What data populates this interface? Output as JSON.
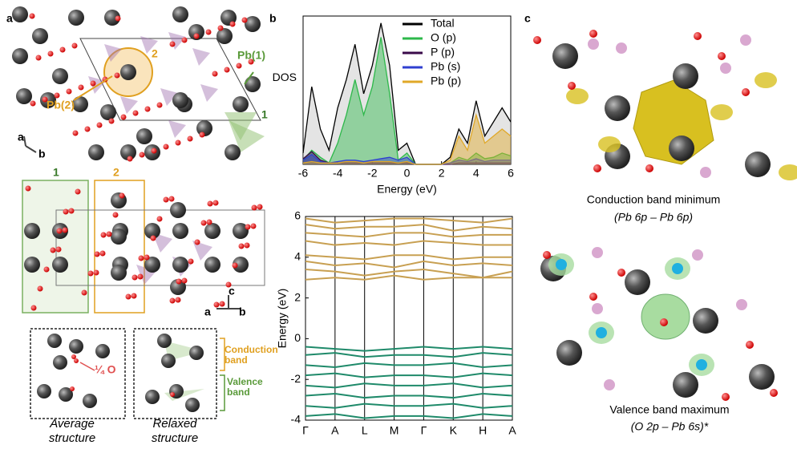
{
  "panel_labels": [
    "a",
    "b",
    "c"
  ],
  "panel_a": {
    "site_labels": [
      "Pb(2)",
      "Pb(1)"
    ],
    "site_numbers_top": [
      "2",
      "1"
    ],
    "site_numbers_side": [
      "1",
      "2"
    ],
    "axes_top": [
      "a",
      "b"
    ],
    "axes_side": [
      "c",
      "a",
      "b"
    ],
    "quarter_o": "¼ O",
    "band_labels": [
      "Conduction band",
      "Valence band"
    ],
    "structure_captions": [
      "Average structure",
      "Relaxed structure"
    ]
  },
  "panel_c": {
    "cbm_title": "Conduction band minimum",
    "cbm_orbitals": "(Pb 6p – Pb 6p)",
    "vbm_title": "Valence band maximum",
    "vbm_orbitals": "(O 2p – Pb 6s)*"
  },
  "chart_data": [
    {
      "type": "area",
      "xlabel": "Energy (eV)",
      "ylabel": "DOS",
      "legend": "upper right",
      "x": [
        -6,
        -5.5,
        -5,
        -4.5,
        -4,
        -3.5,
        -3,
        -2.5,
        -2,
        -1.5,
        -1,
        -0.5,
        0,
        0.5,
        1,
        1.5,
        2,
        2.5,
        3,
        3.5,
        4,
        4.5,
        5,
        5.5,
        6
      ],
      "xlim": [
        -6,
        6
      ],
      "xticks": [
        -6,
        -4,
        -2,
        0,
        2,
        4,
        6
      ],
      "ylim": [
        0,
        10.5
      ],
      "series": [
        {
          "name": "Total",
          "color": "#000000",
          "values": [
            0.8,
            5.5,
            2.5,
            1,
            4,
            6,
            8.5,
            5,
            7,
            10,
            7,
            1,
            1.5,
            0,
            0,
            0,
            0,
            0.5,
            2.5,
            1.5,
            4.5,
            2,
            3,
            4,
            3
          ]
        },
        {
          "name": "O (p)",
          "color": "#2db84a",
          "values": [
            0.3,
            1,
            0.5,
            0.1,
            1.5,
            3.5,
            6,
            3.5,
            5.5,
            9,
            5,
            0.3,
            0.8,
            0,
            0,
            0,
            0,
            0.1,
            0.5,
            0.3,
            0.8,
            0.4,
            0.5,
            0.8,
            0.6
          ]
        },
        {
          "name": "P (p)",
          "color": "#3a0a4a",
          "values": [
            0.4,
            0.9,
            0.3,
            0.1,
            0.1,
            0.1,
            0.1,
            0.1,
            0.1,
            0.1,
            0.1,
            0.1,
            0.1,
            0,
            0,
            0,
            0,
            0,
            0.1,
            0.1,
            0.1,
            0.1,
            0.1,
            0.1,
            0.1
          ]
        },
        {
          "name": "Pb (s)",
          "color": "#2f3fd0",
          "values": [
            0.3,
            0.7,
            0.2,
            0.1,
            0.2,
            0.3,
            0.3,
            0.2,
            0.3,
            0.4,
            0.5,
            0.3,
            0.5,
            0,
            0,
            0,
            0,
            0.1,
            0.3,
            0.2,
            0.4,
            0.2,
            0.3,
            0.3,
            0.3
          ]
        },
        {
          "name": "Pb (p)",
          "color": "#e0a828",
          "values": [
            0.1,
            0.2,
            0.1,
            0.1,
            0.1,
            0.2,
            0.2,
            0.1,
            0.2,
            0.2,
            0.2,
            0.1,
            0.2,
            0,
            0,
            0,
            0,
            0.3,
            2,
            1,
            3.5,
            1.5,
            2,
            2.5,
            2
          ]
        }
      ]
    },
    {
      "type": "line",
      "ylabel": "Energy (eV)",
      "categories": [
        "Γ",
        "A",
        "L",
        "M",
        "Γ",
        "K",
        "H",
        "A"
      ],
      "ylim": [
        -4,
        6
      ],
      "yticks": [
        -4,
        -2,
        0,
        2,
        4,
        6
      ],
      "series": [
        {
          "color": "#c8a052",
          "values": [
            5.9,
            5.7,
            5.8,
            5.9,
            5.9,
            5.8,
            5.7,
            5.9
          ]
        },
        {
          "color": "#c8a052",
          "values": [
            5.6,
            5.4,
            5.5,
            5.5,
            5.6,
            5.3,
            5.5,
            5.4
          ]
        },
        {
          "color": "#c8a052",
          "values": [
            5.2,
            5.1,
            5.0,
            5.2,
            5.2,
            5.0,
            5.1,
            5.1
          ]
        },
        {
          "color": "#c8a052",
          "values": [
            4.8,
            4.6,
            4.7,
            4.6,
            4.8,
            4.7,
            4.6,
            4.6
          ]
        },
        {
          "color": "#c8a052",
          "values": [
            4.1,
            4.0,
            3.9,
            4.1,
            4.1,
            3.9,
            4.0,
            4.0
          ]
        },
        {
          "color": "#c8a052",
          "values": [
            3.8,
            3.6,
            3.7,
            3.5,
            3.8,
            3.6,
            3.7,
            3.6
          ]
        },
        {
          "color": "#c8a052",
          "values": [
            3.4,
            3.3,
            3.1,
            3.3,
            3.4,
            3.2,
            3.0,
            3.3
          ]
        },
        {
          "color": "#c8a052",
          "values": [
            2.9,
            3.0,
            2.9,
            3.1,
            2.9,
            3.0,
            3.0,
            3.0
          ]
        },
        {
          "color": "#1f8a6a",
          "values": [
            -0.4,
            -0.5,
            -0.6,
            -0.5,
            -0.4,
            -0.5,
            -0.4,
            -0.5
          ]
        },
        {
          "color": "#1f8a6a",
          "values": [
            -0.8,
            -0.7,
            -0.9,
            -0.8,
            -0.8,
            -0.9,
            -0.7,
            -0.8
          ]
        },
        {
          "color": "#1f8a6a",
          "values": [
            -1.3,
            -1.4,
            -1.2,
            -1.3,
            -1.3,
            -1.2,
            -1.4,
            -1.3
          ]
        },
        {
          "color": "#1f8a6a",
          "values": [
            -1.8,
            -1.7,
            -1.9,
            -1.8,
            -1.8,
            -1.9,
            -1.7,
            -1.8
          ]
        },
        {
          "color": "#1f8a6a",
          "values": [
            -2.3,
            -2.4,
            -2.2,
            -2.3,
            -2.3,
            -2.2,
            -2.4,
            -2.3
          ]
        },
        {
          "color": "#1f8a6a",
          "values": [
            -2.8,
            -2.7,
            -2.9,
            -2.8,
            -2.8,
            -2.9,
            -2.7,
            -2.8
          ]
        },
        {
          "color": "#1f8a6a",
          "values": [
            -3.3,
            -3.4,
            -3.2,
            -3.3,
            -3.3,
            -3.2,
            -3.4,
            -3.3
          ]
        },
        {
          "color": "#1f8a6a",
          "values": [
            -3.8,
            -3.7,
            -3.9,
            -3.8,
            -3.8,
            -3.9,
            -3.7,
            -3.8
          ]
        }
      ]
    }
  ]
}
